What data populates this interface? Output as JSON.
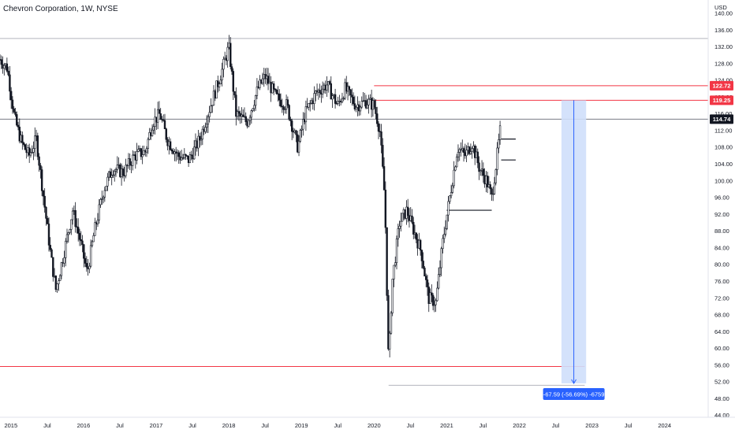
{
  "chart_data": {
    "type": "candlestick",
    "title": "Chevron Corporation, 1W, NYSE",
    "currency_label": "USD",
    "ylim": [
      44,
      142
    ],
    "y_ticks": [
      44,
      48,
      52,
      56,
      60,
      64,
      68,
      72,
      76,
      80,
      84,
      88,
      92,
      96,
      100,
      104,
      108,
      112,
      116,
      120,
      124,
      128,
      132,
      136,
      140
    ],
    "xlim": [
      2014.85,
      2024.6
    ],
    "x_ticks": [
      {
        "label": "2015",
        "x": 2015.0
      },
      {
        "label": "Jul",
        "x": 2015.5
      },
      {
        "label": "2016",
        "x": 2016.0
      },
      {
        "label": "Jul",
        "x": 2016.5
      },
      {
        "label": "2017",
        "x": 2017.0
      },
      {
        "label": "Jul",
        "x": 2017.5
      },
      {
        "label": "2018",
        "x": 2018.0
      },
      {
        "label": "Jul",
        "x": 2018.5
      },
      {
        "label": "2019",
        "x": 2019.0
      },
      {
        "label": "Jul",
        "x": 2019.5
      },
      {
        "label": "2020",
        "x": 2020.0
      },
      {
        "label": "Jul",
        "x": 2020.5
      },
      {
        "label": "2021",
        "x": 2021.0
      },
      {
        "label": "Jul",
        "x": 2021.5
      },
      {
        "label": "2022",
        "x": 2022.0
      },
      {
        "label": "Jul",
        "x": 2022.5
      },
      {
        "label": "2023",
        "x": 2023.0
      },
      {
        "label": "Jul",
        "x": 2023.5
      },
      {
        "label": "2024",
        "x": 2024.0
      }
    ],
    "price_path": [
      [
        2014.85,
        129
      ],
      [
        2014.95,
        127
      ],
      [
        2015.05,
        115
      ],
      [
        2015.15,
        109
      ],
      [
        2015.25,
        106
      ],
      [
        2015.35,
        110
      ],
      [
        2015.45,
        96
      ],
      [
        2015.55,
        82
      ],
      [
        2015.62,
        74
      ],
      [
        2015.72,
        82
      ],
      [
        2015.85,
        93
      ],
      [
        2015.95,
        86
      ],
      [
        2016.05,
        78
      ],
      [
        2016.15,
        88
      ],
      [
        2016.28,
        98
      ],
      [
        2016.4,
        103
      ],
      [
        2016.55,
        102
      ],
      [
        2016.7,
        106
      ],
      [
        2016.85,
        107
      ],
      [
        2016.95,
        114
      ],
      [
        2017.05,
        116
      ],
      [
        2017.15,
        110
      ],
      [
        2017.3,
        106
      ],
      [
        2017.45,
        105
      ],
      [
        2017.6,
        110
      ],
      [
        2017.75,
        118
      ],
      [
        2017.9,
        126
      ],
      [
        2018.0,
        132
      ],
      [
        2018.1,
        116
      ],
      [
        2018.25,
        114
      ],
      [
        2018.4,
        122
      ],
      [
        2018.5,
        125
      ],
      [
        2018.65,
        120
      ],
      [
        2018.8,
        118
      ],
      [
        2018.95,
        108
      ],
      [
        2019.05,
        116
      ],
      [
        2019.2,
        121
      ],
      [
        2019.35,
        123
      ],
      [
        2019.5,
        118
      ],
      [
        2019.6,
        122
      ],
      [
        2019.75,
        118
      ],
      [
        2019.9,
        119
      ],
      [
        2020.0,
        118
      ],
      [
        2020.08,
        112
      ],
      [
        2020.15,
        95
      ],
      [
        2020.2,
        56
      ],
      [
        2020.25,
        76
      ],
      [
        2020.35,
        90
      ],
      [
        2020.45,
        93
      ],
      [
        2020.55,
        88
      ],
      [
        2020.65,
        83
      ],
      [
        2020.75,
        72
      ],
      [
        2020.85,
        71
      ],
      [
        2020.95,
        86
      ],
      [
        2021.05,
        97
      ],
      [
        2021.15,
        108
      ],
      [
        2021.25,
        106
      ],
      [
        2021.35,
        109
      ],
      [
        2021.45,
        103
      ],
      [
        2021.55,
        100
      ],
      [
        2021.62,
        96
      ],
      [
        2021.68,
        104
      ],
      [
        2021.75,
        114
      ]
    ],
    "current_price": 114.74,
    "horizontal_lines": [
      {
        "kind": "red",
        "price": 122.72,
        "x_start": 2020.0,
        "label": "122.72",
        "color": "#f23645"
      },
      {
        "kind": "red",
        "price": 119.25,
        "x_start": 2020.0,
        "label": "119.25",
        "color": "#f23645"
      },
      {
        "kind": "red",
        "price": 55.7,
        "x_start": 2014.85,
        "x_end": 2022.9,
        "color": "#f23645"
      },
      {
        "kind": "gray",
        "price": 114.74,
        "x_start": 2014.85,
        "label": "114.74",
        "color": "#787b86"
      },
      {
        "kind": "gray",
        "price": 134.0,
        "x_start": 2014.85,
        "color": "#b2b5be"
      },
      {
        "kind": "gray",
        "price": 51.2,
        "x_start": 2020.2,
        "x_end": 2022.9,
        "color": "#b2b5be"
      },
      {
        "kind": "black",
        "price": 110.0,
        "x_start": 2021.75,
        "x_end": 2021.95,
        "color": "#131722"
      },
      {
        "kind": "black",
        "price": 105.0,
        "x_start": 2021.75,
        "x_end": 2021.95,
        "color": "#131722"
      },
      {
        "kind": "black",
        "price": 93.0,
        "x_start": 2021.0,
        "x_end": 2021.62,
        "color": "#131722"
      }
    ],
    "measure": {
      "x_start": 2022.58,
      "x_end": 2022.92,
      "y_top": 119.25,
      "y_bottom": 51.66,
      "label": "-67.59 (-56.69%) -6759",
      "fill": "#cfdffb",
      "stroke": "#2962ff"
    }
  }
}
